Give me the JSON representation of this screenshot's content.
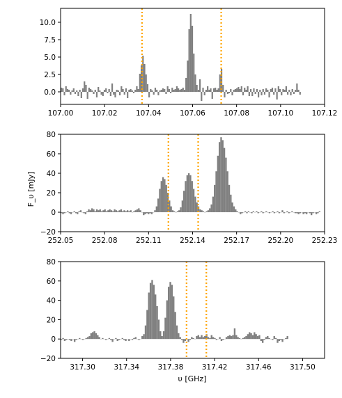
{
  "figure": {
    "ylabel": "F_υ [mJy]",
    "xlabel": "υ [GHz]",
    "bar_color": "#808080",
    "line_color": "#FFA500"
  },
  "chart_data": [
    {
      "type": "bar",
      "xlim": [
        107.0,
        107.12
      ],
      "ylim": [
        -1.8,
        12.0
      ],
      "xticks": [
        "107.00",
        "107.02",
        "107.04",
        "107.06",
        "107.08",
        "107.10",
        "107.12"
      ],
      "yticks": [
        "0.0",
        "2.5",
        "5.0",
        "7.5",
        "10.0"
      ],
      "bin_width": 0.0007,
      "x_start": 107.0,
      "values": [
        0.6,
        0.5,
        -0.5,
        0.8,
        0.4,
        0.3,
        -0.4,
        0.2,
        0.5,
        -0.3,
        0.2,
        -0.6,
        0.3,
        -0.9,
        0.5,
        1.5,
        1.0,
        -1.0,
        0.6,
        0.4,
        0.2,
        -0.3,
        0.3,
        -0.8,
        0.7,
        0.2,
        -0.4,
        -0.6,
        0.3,
        0.5,
        -0.2,
        0.4,
        -0.6,
        1.2,
        -0.4,
        -0.8,
        0.3,
        0.2,
        -0.5,
        0.8,
        0.4,
        -0.4,
        0.5,
        -0.9,
        0.3,
        0.4,
        0.2,
        -0.2,
        0.3,
        0.8,
        0.4,
        2.6,
        3.8,
        5.2,
        4.0,
        2.5,
        1.1,
        -0.8,
        0.4,
        0.2,
        -0.4,
        0.6,
        0.3,
        -0.5,
        0.2,
        0.3,
        0.5,
        0.4,
        -0.3,
        0.8,
        0.4,
        -0.2,
        0.6,
        0.3,
        0.4,
        0.8,
        0.5,
        0.3,
        0.4,
        0.6,
        0.3,
        2.0,
        4.5,
        9.0,
        11.2,
        9.5,
        5.5,
        2.5,
        1.0,
        0.3,
        1.8,
        -1.3,
        0.6,
        -0.5,
        0.3,
        0.8,
        0.3,
        0.5,
        -1.0,
        0.5,
        0.6,
        0.3,
        0.5,
        2.5,
        3.3,
        1.0,
        -0.8,
        0.3,
        -0.3,
        -0.2,
        0.4,
        -0.5,
        0.3,
        0.4,
        0.5,
        0.7,
        0.4,
        0.8,
        -0.5,
        0.6,
        0.3,
        0.8,
        -0.6,
        0.4,
        -0.6,
        0.5,
        -0.3,
        0.4,
        -0.8,
        0.3,
        -0.5,
        0.4,
        -0.4,
        0.5,
        0.3,
        -0.8,
        0.4,
        0.6,
        -0.4,
        0.5,
        -1.1,
        0.8,
        0.4,
        -0.5,
        0.4,
        0.3,
        0.8,
        -0.4,
        0.3,
        -0.5,
        0.4,
        -0.3,
        0.3,
        1.2,
        0.3,
        -0.4
      ],
      "vlines": [
        107.037,
        107.073
      ]
    },
    {
      "type": "bar",
      "xlim": [
        252.05,
        252.23
      ],
      "ylim": [
        -20,
        80
      ],
      "xticks": [
        "252.05",
        "252.08",
        "252.11",
        "252.14",
        "252.17",
        "252.20",
        "252.23"
      ],
      "yticks": [
        "−20",
        "0",
        "20",
        "40",
        "60",
        "80"
      ],
      "bin_width": 0.0011,
      "x_start": 252.05,
      "values": [
        -1,
        -2,
        -1,
        0,
        1,
        -1,
        -2,
        0,
        1,
        -1,
        -2,
        1,
        2,
        0,
        -1,
        -2,
        1,
        3,
        2,
        4,
        3,
        1,
        3,
        2,
        3,
        1,
        2,
        3,
        1,
        2,
        3,
        2,
        1,
        3,
        2,
        1,
        2,
        3,
        1,
        2,
        1,
        2,
        1,
        2,
        0,
        1,
        2,
        3,
        4,
        2,
        0,
        -3,
        -2,
        -1,
        -2,
        -1,
        -2,
        0,
        2,
        6,
        14,
        24,
        32,
        36,
        34,
        28,
        20,
        12,
        6,
        2,
        1,
        0,
        1,
        2,
        5,
        12,
        22,
        32,
        38,
        40,
        38,
        32,
        24,
        16,
        10,
        6,
        3,
        2,
        1,
        0,
        1,
        2,
        4,
        8,
        16,
        28,
        42,
        58,
        72,
        77,
        74,
        66,
        56,
        42,
        28,
        18,
        10,
        6,
        3,
        1,
        0,
        -2,
        -1,
        0,
        1,
        -1,
        1,
        0,
        -1,
        1,
        0,
        1,
        -1,
        0,
        1,
        -1,
        0,
        1,
        0,
        -1,
        0,
        1,
        -1,
        0,
        1,
        -1,
        0,
        2,
        -1,
        0,
        1,
        -1,
        0,
        1,
        0,
        -1,
        -1,
        -2,
        -1,
        0,
        -2,
        -1,
        -2,
        0,
        -1,
        -3,
        -1,
        0,
        -2,
        -1,
        1
      ],
      "vlines": [
        252.1235,
        252.1438
      ]
    },
    {
      "type": "bar",
      "xlim": [
        317.28,
        317.52
      ],
      "ylim": [
        -20,
        80
      ],
      "xticks": [
        "317.30",
        "317.34",
        "317.38",
        "317.42",
        "317.46",
        "317.50"
      ],
      "yticks": [
        "−20",
        "0",
        "20",
        "40",
        "60",
        "80"
      ],
      "bin_width": 0.0015,
      "x_start": 317.28,
      "values": [
        -1,
        1,
        -2,
        -1,
        0,
        -1,
        -2,
        0,
        -3,
        -1,
        0,
        1,
        0,
        -1,
        0,
        1,
        2,
        3,
        6,
        7,
        8,
        6,
        4,
        2,
        0,
        1,
        0,
        -1,
        0,
        1,
        -1,
        -3,
        0,
        1,
        -2,
        -1,
        0,
        1,
        -1,
        -2,
        0,
        -2,
        0,
        -1,
        1,
        2,
        0,
        -1,
        0,
        3,
        5,
        14,
        30,
        48,
        58,
        61,
        56,
        46,
        34,
        20,
        8,
        3,
        8,
        22,
        40,
        54,
        59,
        56,
        44,
        28,
        14,
        6,
        2,
        -1,
        -4,
        -2,
        0,
        -3,
        -1,
        2,
        1,
        0,
        3,
        4,
        2,
        4,
        2,
        3,
        5,
        2,
        1,
        4,
        2,
        1,
        -1,
        0,
        2,
        -2,
        -1,
        0,
        2,
        3,
        4,
        3,
        4,
        11,
        4,
        2,
        1,
        0,
        1,
        2,
        3,
        5,
        7,
        6,
        4,
        7,
        5,
        3,
        4,
        -2,
        -4,
        -1,
        2,
        3,
        1,
        0,
        -1,
        3,
        1,
        -4,
        -2,
        -1,
        -3,
        0,
        1,
        3
      ],
      "vlines": [
        317.3945,
        317.4125
      ]
    }
  ]
}
